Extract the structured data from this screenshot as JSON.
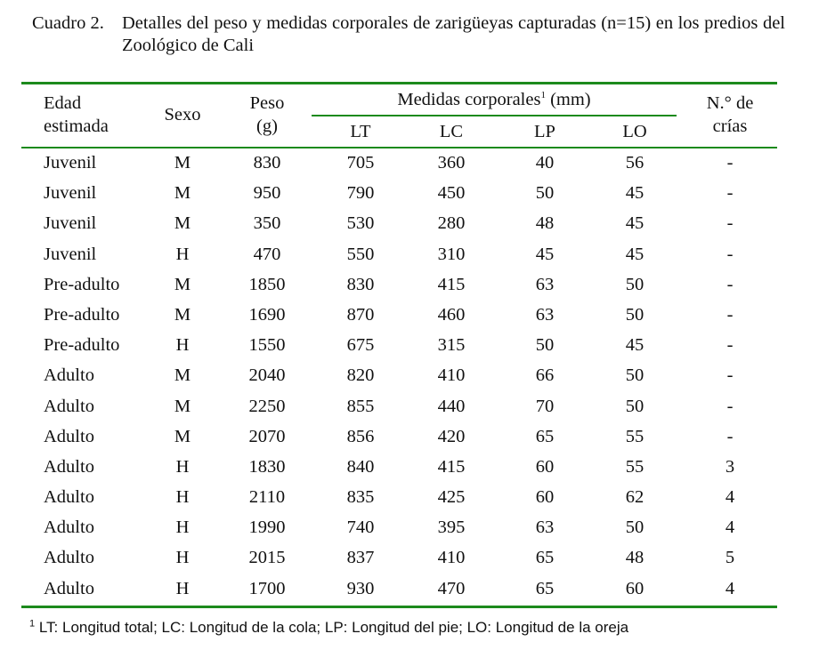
{
  "caption": {
    "label": "Cuadro 2.",
    "text": "Detalles del peso y medidas corporales de zarigüeyas capturadas (n=15) en los predios del Zoológico de Cali"
  },
  "headers": {
    "edad_line1": "Edad",
    "edad_line2": "estimada",
    "sexo": "Sexo",
    "peso_line1": "Peso",
    "peso_line2": "(g)",
    "medidas": "Medidas corporales",
    "medidas_sup": "1",
    "medidas_unit": " (mm)",
    "lt": "LT",
    "lc": "LC",
    "lp": "LP",
    "lo": "LO",
    "crias_line1": "N.° de",
    "crias_line2": "crías"
  },
  "rows": [
    {
      "edad": "Juvenil",
      "sexo": "M",
      "peso": "830",
      "lt": "705",
      "lc": "360",
      "lp": "40",
      "lo": "56",
      "crias": "-"
    },
    {
      "edad": "Juvenil",
      "sexo": "M",
      "peso": "950",
      "lt": "790",
      "lc": "450",
      "lp": "50",
      "lo": "45",
      "crias": "-"
    },
    {
      "edad": "Juvenil",
      "sexo": "M",
      "peso": "350",
      "lt": "530",
      "lc": "280",
      "lp": "48",
      "lo": "45",
      "crias": "-"
    },
    {
      "edad": "Juvenil",
      "sexo": "H",
      "peso": "470",
      "lt": "550",
      "lc": "310",
      "lp": "45",
      "lo": "45",
      "crias": "-"
    },
    {
      "edad": "Pre-adulto",
      "sexo": "M",
      "peso": "1850",
      "lt": "830",
      "lc": "415",
      "lp": "63",
      "lo": "50",
      "crias": "-"
    },
    {
      "edad": "Pre-adulto",
      "sexo": "M",
      "peso": "1690",
      "lt": "870",
      "lc": "460",
      "lp": "63",
      "lo": "50",
      "crias": "-"
    },
    {
      "edad": "Pre-adulto",
      "sexo": "H",
      "peso": "1550",
      "lt": "675",
      "lc": "315",
      "lp": "50",
      "lo": "45",
      "crias": "-"
    },
    {
      "edad": "Adulto",
      "sexo": "M",
      "peso": "2040",
      "lt": "820",
      "lc": "410",
      "lp": "66",
      "lo": "50",
      "crias": "-"
    },
    {
      "edad": "Adulto",
      "sexo": "M",
      "peso": "2250",
      "lt": "855",
      "lc": "440",
      "lp": "70",
      "lo": "50",
      "crias": "-"
    },
    {
      "edad": "Adulto",
      "sexo": "M",
      "peso": "2070",
      "lt": "856",
      "lc": "420",
      "lp": "65",
      "lo": "55",
      "crias": "-"
    },
    {
      "edad": "Adulto",
      "sexo": "H",
      "peso": "1830",
      "lt": "840",
      "lc": "415",
      "lp": "60",
      "lo": "55",
      "crias": "3"
    },
    {
      "edad": "Adulto",
      "sexo": "H",
      "peso": "2110",
      "lt": "835",
      "lc": "425",
      "lp": "60",
      "lo": "62",
      "crias": "4"
    },
    {
      "edad": "Adulto",
      "sexo": "H",
      "peso": "1990",
      "lt": "740",
      "lc": "395",
      "lp": "63",
      "lo": "50",
      "crias": "4"
    },
    {
      "edad": "Adulto",
      "sexo": "H",
      "peso": "2015",
      "lt": "837",
      "lc": "410",
      "lp": "65",
      "lo": "48",
      "crias": "5"
    },
    {
      "edad": "Adulto",
      "sexo": "H",
      "peso": "1700",
      "lt": "930",
      "lc": "470",
      "lp": "65",
      "lo": "60",
      "crias": "4"
    }
  ],
  "footnote": {
    "marker": "1",
    "text": "LT: Longitud total; LC: Longitud de la cola; LP: Longitud del pie; LO: Longitud de la oreja"
  },
  "colors": {
    "rule": "#1c8a1c",
    "text": "#111111"
  }
}
